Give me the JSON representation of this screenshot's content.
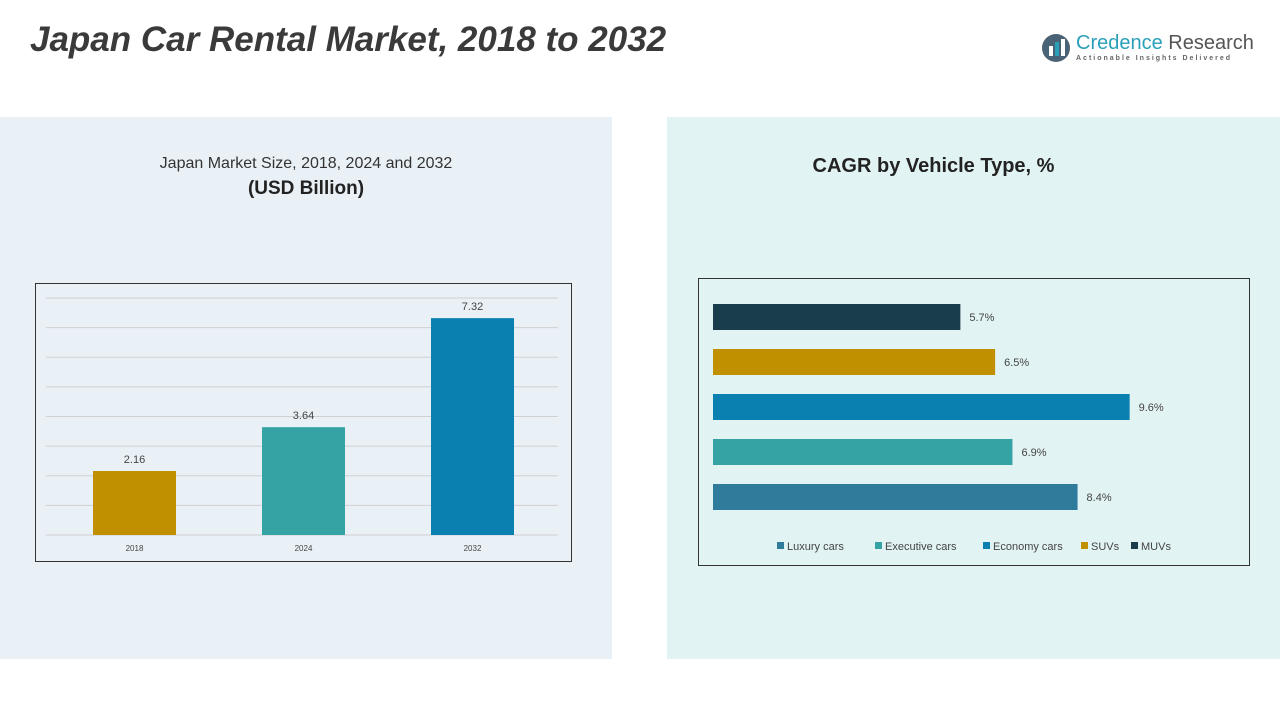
{
  "header": {
    "title": "Japan Car Rental Market, 2018 to 2032",
    "logo_name": "Credence",
    "logo_name2": " Research",
    "logo_tagline": "Actionable Insights Delivered"
  },
  "chart_data": [
    {
      "type": "bar",
      "title": "Japan Market Size, 2018, 2024 and 2032",
      "subtitle": "(USD Billion)",
      "categories": [
        "2018",
        "2024",
        "2032"
      ],
      "values": [
        2.16,
        3.64,
        7.32
      ],
      "colors": [
        "#c09000",
        "#35a3a3",
        "#0a80b0"
      ],
      "ylim": [
        0,
        8
      ],
      "grid": true
    },
    {
      "type": "bar",
      "orientation": "horizontal",
      "title": "CAGR by Vehicle Type, %",
      "categories": [
        "MUVs",
        "SUVs",
        "Economy cars",
        "Executive cars",
        "Luxury cars"
      ],
      "values": [
        5.7,
        6.5,
        9.6,
        6.9,
        8.4
      ],
      "labels": [
        "5.7%",
        "6.5%",
        "9.6%",
        "6.9%",
        "8.4%"
      ],
      "colors": [
        "#1a3d4d",
        "#c09000",
        "#0a80b0",
        "#35a3a3",
        "#2e7b9c"
      ],
      "legend": [
        "Luxury cars",
        "Executive cars",
        "Economy cars",
        "SUVs",
        "MUVs"
      ],
      "legend_colors": [
        "#2e7b9c",
        "#35a3a3",
        "#0a80b0",
        "#c09000",
        "#1a3d4d"
      ],
      "legend_position": "bottom"
    }
  ]
}
